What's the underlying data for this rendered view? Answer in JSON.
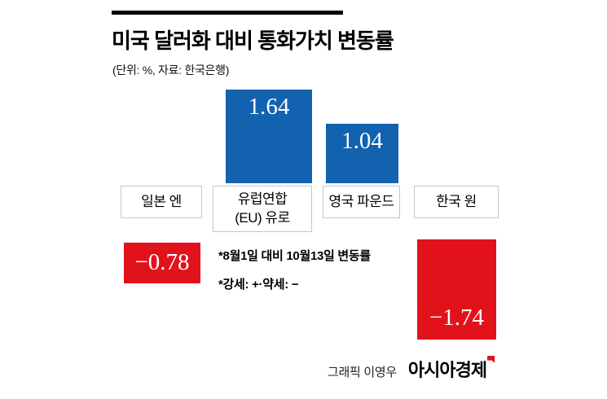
{
  "header": {
    "title": "미국 달러화 대비 통화가치 변동률",
    "subtitle": "(단위: %, 자료: 한국은행)"
  },
  "chart_data": {
    "type": "bar",
    "title": "미국 달러화 대비 통화가치 변동률",
    "unit_note": "(단위: %, 자료: 한국은행)",
    "categories": [
      "일본 엔",
      "유럽연합(EU) 유로",
      "영국 파운드",
      "한국 원"
    ],
    "values": [
      -0.78,
      1.64,
      1.04,
      -1.74
    ],
    "ylabel": "%",
    "ylim": [
      -2,
      2
    ],
    "grid": false,
    "legend": "none",
    "positive_color": "#1262af",
    "negative_color": "#e2121b",
    "annotations": [
      "*8월1일 대비 10월13일 변동률",
      "*강세: +·약세: −"
    ]
  },
  "bars": [
    {
      "id": "jpy",
      "label_line1": "일본 엔",
      "value_label": "−0.78",
      "direction": "negative"
    },
    {
      "id": "eur",
      "label_line1": "유럽연합",
      "label_line2": "(EU) 유로",
      "value_label": "1.64",
      "direction": "positive"
    },
    {
      "id": "gbp",
      "label_line1": "영국 파운드",
      "value_label": "1.04",
      "direction": "positive"
    },
    {
      "id": "krw",
      "label_line1": "한국 원",
      "value_label": "−1.74",
      "direction": "negative"
    }
  ],
  "notes": {
    "line1": "*8월1일 대비 10월13일 변동률",
    "line2": "*강세: +·약세: −"
  },
  "footer": {
    "credit": "그래픽 이영우",
    "brand": "아시아경제"
  }
}
